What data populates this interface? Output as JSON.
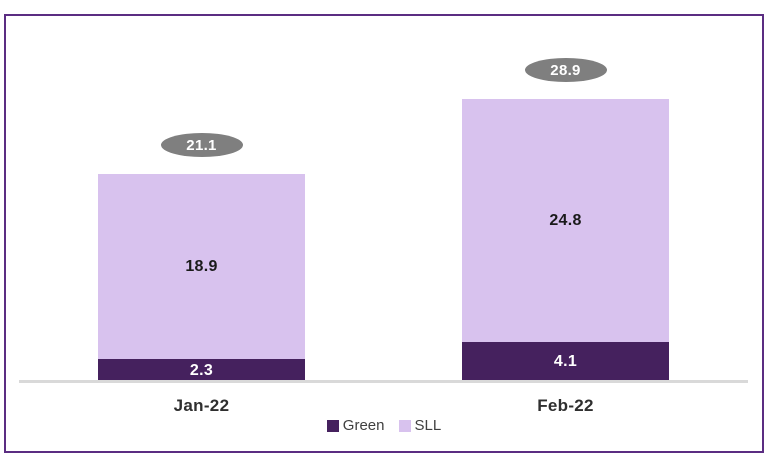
{
  "chart_data": {
    "type": "bar",
    "stacked": true,
    "title": "",
    "xlabel": "",
    "ylabel": "",
    "categories": [
      "Jan-22",
      "Feb-22"
    ],
    "series": [
      {
        "name": "Green",
        "color": "#45215e",
        "values": [
          2.3,
          4.1
        ]
      },
      {
        "name": "SLL",
        "color": "#d8c2ee",
        "values": [
          18.9,
          24.8
        ]
      }
    ],
    "totals": [
      21.1,
      28.9
    ],
    "total_badge_color": "#7f7f7f",
    "axis_line_color": "#d9d9d9",
    "frame_border_color": "#5b2d82",
    "grid": false,
    "legend_position": "bottom",
    "ylim": [
      0,
      30
    ]
  }
}
